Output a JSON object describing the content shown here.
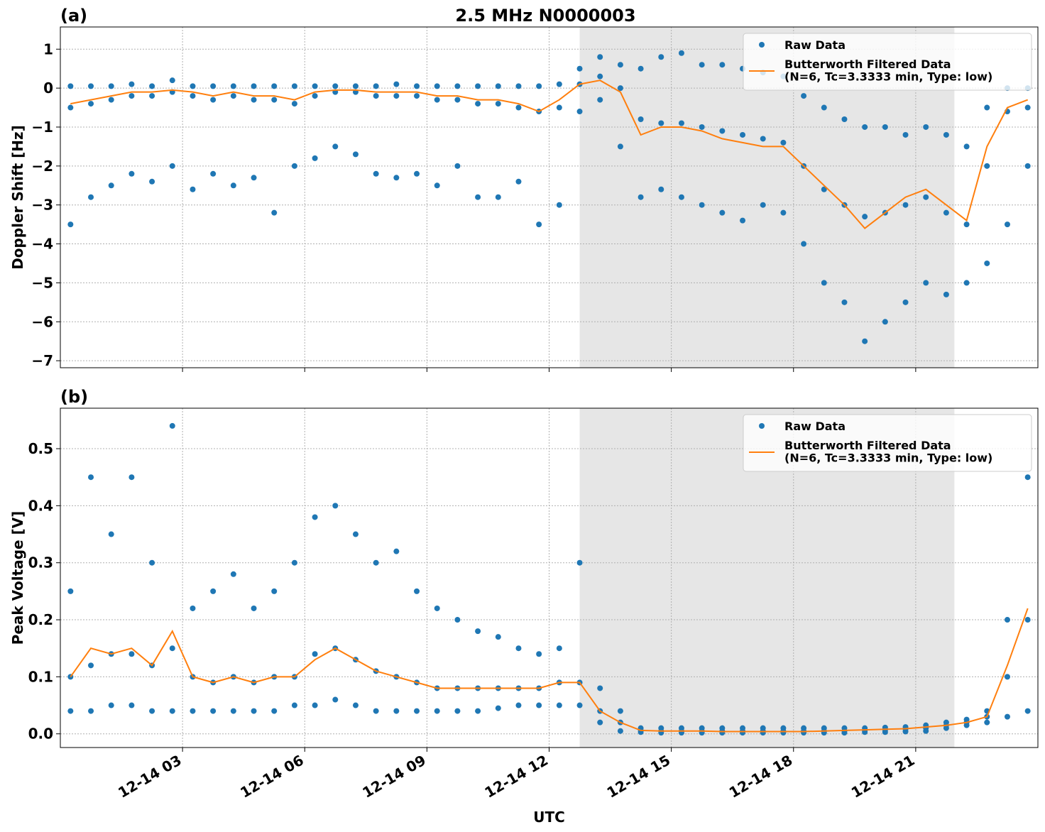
{
  "chart_data": [
    {
      "type": "scatter_line",
      "panel_label": "(a)",
      "title": "2.5 MHz N0000003",
      "ylabel": "Doppler Shift [Hz]",
      "xlim": [
        0,
        24
      ],
      "ylim": [
        -7.18,
        1.57
      ],
      "xticks": [
        {
          "value": 3,
          "label": "12-14 03"
        },
        {
          "value": 6,
          "label": "12-14 06"
        },
        {
          "value": 9,
          "label": "12-14 09"
        },
        {
          "value": 12,
          "label": "12-14 12"
        },
        {
          "value": 15,
          "label": "12-14 15"
        },
        {
          "value": 18,
          "label": "12-14 18"
        },
        {
          "value": 21,
          "label": "12-14 21"
        }
      ],
      "yticks": [
        {
          "value": -7,
          "label": "−7"
        },
        {
          "value": -6,
          "label": "−6"
        },
        {
          "value": -5,
          "label": "−5"
        },
        {
          "value": -4,
          "label": "−4"
        },
        {
          "value": -3,
          "label": "−3"
        },
        {
          "value": -2,
          "label": "−2"
        },
        {
          "value": -1,
          "label": "−1"
        },
        0,
        1
      ],
      "grid": true,
      "legend": "upper right",
      "shaded_span": [
        12.75,
        21.95
      ],
      "x": [
        0.25,
        0.75,
        1.25,
        1.75,
        2.25,
        2.75,
        3.25,
        3.75,
        4.25,
        4.75,
        5.25,
        5.75,
        6.25,
        6.75,
        7.25,
        7.75,
        8.25,
        8.75,
        9.25,
        9.75,
        10.25,
        10.75,
        11.25,
        11.75,
        12.25,
        12.75,
        13.25,
        13.75,
        14.25,
        14.75,
        15.25,
        15.75,
        16.25,
        16.75,
        17.25,
        17.75,
        18.25,
        18.75,
        19.25,
        19.75,
        20.25,
        20.75,
        21.25,
        21.75,
        22.25,
        22.75,
        23.25,
        23.75
      ],
      "series": [
        {
          "name": "Raw Data",
          "color": "#1f77b4",
          "style": "dots",
          "values": [
            [
              0.05,
              -0.5,
              -3.5
            ],
            [
              0.05,
              -0.4,
              -2.8
            ],
            [
              0.05,
              -0.3,
              -2.5
            ],
            [
              0.1,
              -0.2,
              -2.2
            ],
            [
              0.05,
              -0.2,
              -2.4
            ],
            [
              0.2,
              -0.1,
              -2.0
            ],
            [
              0.05,
              -0.2,
              -2.6
            ],
            [
              0.05,
              -0.3,
              -2.2
            ],
            [
              0.05,
              -0.2,
              -2.5
            ],
            [
              0.05,
              -0.3,
              -2.3
            ],
            [
              0.05,
              -0.3,
              -3.2
            ],
            [
              0.05,
              -0.4,
              -2.0
            ],
            [
              0.05,
              -0.2,
              -1.8
            ],
            [
              0.05,
              -0.1,
              -1.5
            ],
            [
              0.05,
              -0.1,
              -1.7
            ],
            [
              0.05,
              -0.2,
              -2.2
            ],
            [
              0.1,
              -0.2,
              -2.3
            ],
            [
              0.05,
              -0.2,
              -2.2
            ],
            [
              0.05,
              -0.3,
              -2.5
            ],
            [
              0.05,
              -0.3,
              -2.0
            ],
            [
              0.05,
              -0.4,
              -2.8
            ],
            [
              0.05,
              -0.4,
              -2.8
            ],
            [
              0.05,
              -0.5,
              -2.4
            ],
            [
              0.05,
              -0.6,
              -3.5
            ],
            [
              0.1,
              -0.5,
              -3.0
            ],
            [
              0.5,
              0.1,
              -0.6
            ],
            [
              0.8,
              0.3,
              -0.3
            ],
            [
              0.6,
              0.0,
              -1.5
            ],
            [
              0.5,
              -0.8,
              -2.8
            ],
            [
              0.8,
              -0.9,
              -2.6
            ],
            [
              0.9,
              -0.9,
              -2.8
            ],
            [
              0.6,
              -1.0,
              -3.0
            ],
            [
              0.6,
              -1.1,
              -3.2
            ],
            [
              0.5,
              -1.2,
              -3.4
            ],
            [
              0.4,
              -1.3,
              -3.0
            ],
            [
              0.3,
              -1.4,
              -3.2
            ],
            [
              -0.2,
              -2.0,
              -4.0
            ],
            [
              -0.5,
              -2.6,
              -5.0
            ],
            [
              -0.8,
              -3.0,
              -5.5
            ],
            [
              -1.0,
              -3.3,
              -6.5
            ],
            [
              -1.0,
              -3.2,
              -6.0
            ],
            [
              -1.2,
              -3.0,
              -5.5
            ],
            [
              -1.0,
              -2.8,
              -5.0
            ],
            [
              -1.2,
              -3.2,
              -5.3
            ],
            [
              -1.5,
              -3.5,
              -5.0
            ],
            [
              -0.5,
              -2.0,
              -4.5
            ],
            [
              0.0,
              -0.6,
              -3.5
            ],
            [
              0.0,
              -0.5,
              -2.0
            ]
          ]
        },
        {
          "name": "Butterworth Filtered Data\n(N=6, Tc=3.3333 min, Type: low)",
          "color": "#ff7f0e",
          "style": "line",
          "values": [
            -0.4,
            -0.3,
            -0.2,
            -0.1,
            -0.1,
            -0.05,
            -0.1,
            -0.2,
            -0.1,
            -0.2,
            -0.2,
            -0.3,
            -0.1,
            -0.05,
            -0.05,
            -0.1,
            -0.1,
            -0.1,
            -0.2,
            -0.2,
            -0.3,
            -0.3,
            -0.4,
            -0.6,
            -0.3,
            0.1,
            0.2,
            -0.1,
            -1.2,
            -1.0,
            -1.0,
            -1.1,
            -1.3,
            -1.4,
            -1.5,
            -1.5,
            -2.0,
            -2.5,
            -3.0,
            -3.6,
            -3.2,
            -2.8,
            -2.6,
            -3.0,
            -3.4,
            -1.5,
            -0.5,
            -0.3
          ]
        }
      ]
    },
    {
      "type": "scatter_line",
      "panel_label": "(b)",
      "ylabel": "Peak Voltage [V]",
      "xlabel": "UTC",
      "xlim": [
        0,
        24
      ],
      "ylim": [
        -0.024,
        0.571
      ],
      "xticks": [
        {
          "value": 3,
          "label": "12-14 03"
        },
        {
          "value": 6,
          "label": "12-14 06"
        },
        {
          "value": 9,
          "label": "12-14 09"
        },
        {
          "value": 12,
          "label": "12-14 12"
        },
        {
          "value": 15,
          "label": "12-14 15"
        },
        {
          "value": 18,
          "label": "12-14 18"
        },
        {
          "value": 21,
          "label": "12-14 21"
        }
      ],
      "yticks": [
        {
          "value": 0,
          "label": "0.0"
        },
        0.1,
        0.2,
        0.3,
        0.4,
        0.5
      ],
      "grid": true,
      "legend": "upper right",
      "shaded_span": [
        12.75,
        21.95
      ],
      "x": [
        0.25,
        0.75,
        1.25,
        1.75,
        2.25,
        2.75,
        3.25,
        3.75,
        4.25,
        4.75,
        5.25,
        5.75,
        6.25,
        6.75,
        7.25,
        7.75,
        8.25,
        8.75,
        9.25,
        9.75,
        10.25,
        10.75,
        11.25,
        11.75,
        12.25,
        12.75,
        13.25,
        13.75,
        14.25,
        14.75,
        15.25,
        15.75,
        16.25,
        16.75,
        17.25,
        17.75,
        18.25,
        18.75,
        19.25,
        19.75,
        20.25,
        20.75,
        21.25,
        21.75,
        22.25,
        22.75,
        23.25,
        23.75
      ],
      "series": [
        {
          "name": "Raw Data",
          "color": "#1f77b4",
          "style": "dots",
          "values": [
            [
              0.25,
              0.1,
              0.04
            ],
            [
              0.45,
              0.12,
              0.04
            ],
            [
              0.35,
              0.14,
              0.05
            ],
            [
              0.45,
              0.14,
              0.05
            ],
            [
              0.3,
              0.12,
              0.04
            ],
            [
              0.54,
              0.15,
              0.04
            ],
            [
              0.22,
              0.1,
              0.04
            ],
            [
              0.25,
              0.09,
              0.04
            ],
            [
              0.28,
              0.1,
              0.04
            ],
            [
              0.22,
              0.09,
              0.04
            ],
            [
              0.25,
              0.1,
              0.04
            ],
            [
              0.3,
              0.1,
              0.05
            ],
            [
              0.38,
              0.14,
              0.05
            ],
            [
              0.4,
              0.15,
              0.06
            ],
            [
              0.35,
              0.13,
              0.05
            ],
            [
              0.3,
              0.11,
              0.04
            ],
            [
              0.32,
              0.1,
              0.04
            ],
            [
              0.25,
              0.09,
              0.04
            ],
            [
              0.22,
              0.08,
              0.04
            ],
            [
              0.2,
              0.08,
              0.04
            ],
            [
              0.18,
              0.08,
              0.04
            ],
            [
              0.17,
              0.08,
              0.045
            ],
            [
              0.15,
              0.08,
              0.05
            ],
            [
              0.14,
              0.08,
              0.05
            ],
            [
              0.15,
              0.09,
              0.05
            ],
            [
              0.3,
              0.09,
              0.05
            ],
            [
              0.08,
              0.04,
              0.02
            ],
            [
              0.04,
              0.02,
              0.005
            ],
            [
              0.01,
              0.006,
              0.003
            ],
            [
              0.01,
              0.005,
              0.002
            ],
            [
              0.01,
              0.005,
              0.002
            ],
            [
              0.01,
              0.005,
              0.002
            ],
            [
              0.01,
              0.005,
              0.002
            ],
            [
              0.01,
              0.005,
              0.002
            ],
            [
              0.01,
              0.005,
              0.002
            ],
            [
              0.01,
              0.005,
              0.002
            ],
            [
              0.01,
              0.005,
              0.002
            ],
            [
              0.01,
              0.005,
              0.002
            ],
            [
              0.01,
              0.005,
              0.002
            ],
            [
              0.01,
              0.006,
              0.003
            ],
            [
              0.011,
              0.007,
              0.003
            ],
            [
              0.012,
              0.008,
              0.004
            ],
            [
              0.015,
              0.01,
              0.005
            ],
            [
              0.02,
              0.015,
              0.01
            ],
            [
              0.025,
              0.02,
              0.015
            ],
            [
              0.04,
              0.03,
              0.02
            ],
            [
              0.2,
              0.1,
              0.03
            ],
            [
              0.45,
              0.2,
              0.04
            ]
          ]
        },
        {
          "name": "Butterworth Filtered Data\n(N=6, Tc=3.3333 min, Type: low)",
          "color": "#ff7f0e",
          "style": "line",
          "values": [
            0.1,
            0.15,
            0.14,
            0.15,
            0.12,
            0.18,
            0.1,
            0.09,
            0.1,
            0.09,
            0.1,
            0.1,
            0.13,
            0.15,
            0.13,
            0.11,
            0.1,
            0.09,
            0.08,
            0.08,
            0.08,
            0.08,
            0.08,
            0.08,
            0.09,
            0.09,
            0.04,
            0.02,
            0.006,
            0.005,
            0.005,
            0.005,
            0.004,
            0.004,
            0.004,
            0.004,
            0.004,
            0.005,
            0.006,
            0.007,
            0.008,
            0.009,
            0.012,
            0.015,
            0.02,
            0.03,
            0.12,
            0.22
          ]
        }
      ]
    }
  ]
}
